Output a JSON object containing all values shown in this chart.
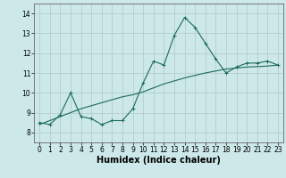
{
  "xlabel": "Humidex (Indice chaleur)",
  "ylabel": "",
  "bg_color": "#cce8e8",
  "grid_color": "#b0c8c8",
  "line_color": "#1a6b5a",
  "xlim": [
    -0.5,
    23.5
  ],
  "ylim": [
    7.5,
    14.5
  ],
  "yticks": [
    8,
    9,
    10,
    11,
    12,
    13,
    14
  ],
  "xticks": [
    0,
    1,
    2,
    3,
    4,
    5,
    6,
    7,
    8,
    9,
    10,
    11,
    12,
    13,
    14,
    15,
    16,
    17,
    18,
    19,
    20,
    21,
    22,
    23
  ],
  "series1_x": [
    0,
    1,
    2,
    3,
    4,
    5,
    6,
    7,
    8,
    9,
    10,
    11,
    12,
    13,
    14,
    15,
    16,
    17,
    18,
    19,
    20,
    21,
    22,
    23
  ],
  "series1_y": [
    8.5,
    8.4,
    8.9,
    10.0,
    8.8,
    8.7,
    8.4,
    8.6,
    8.6,
    9.2,
    10.5,
    11.6,
    11.4,
    12.9,
    13.8,
    13.3,
    12.5,
    11.7,
    11.0,
    11.3,
    11.5,
    11.5,
    11.6,
    11.4
  ],
  "series2_x": [
    0,
    1,
    2,
    3,
    4,
    5,
    6,
    7,
    8,
    9,
    10,
    11,
    12,
    13,
    14,
    15,
    16,
    17,
    18,
    19,
    20,
    21,
    22,
    23
  ],
  "series2_y": [
    8.4,
    8.6,
    8.8,
    9.0,
    9.2,
    9.35,
    9.5,
    9.65,
    9.8,
    9.9,
    10.05,
    10.25,
    10.45,
    10.6,
    10.75,
    10.88,
    11.0,
    11.1,
    11.2,
    11.25,
    11.3,
    11.32,
    11.35,
    11.4
  ],
  "marker": "+",
  "markersize": 3,
  "linewidth": 0.8,
  "xlabel_fontsize": 7,
  "tick_fontsize": 5.5,
  "xlabel_fontweight": "bold"
}
